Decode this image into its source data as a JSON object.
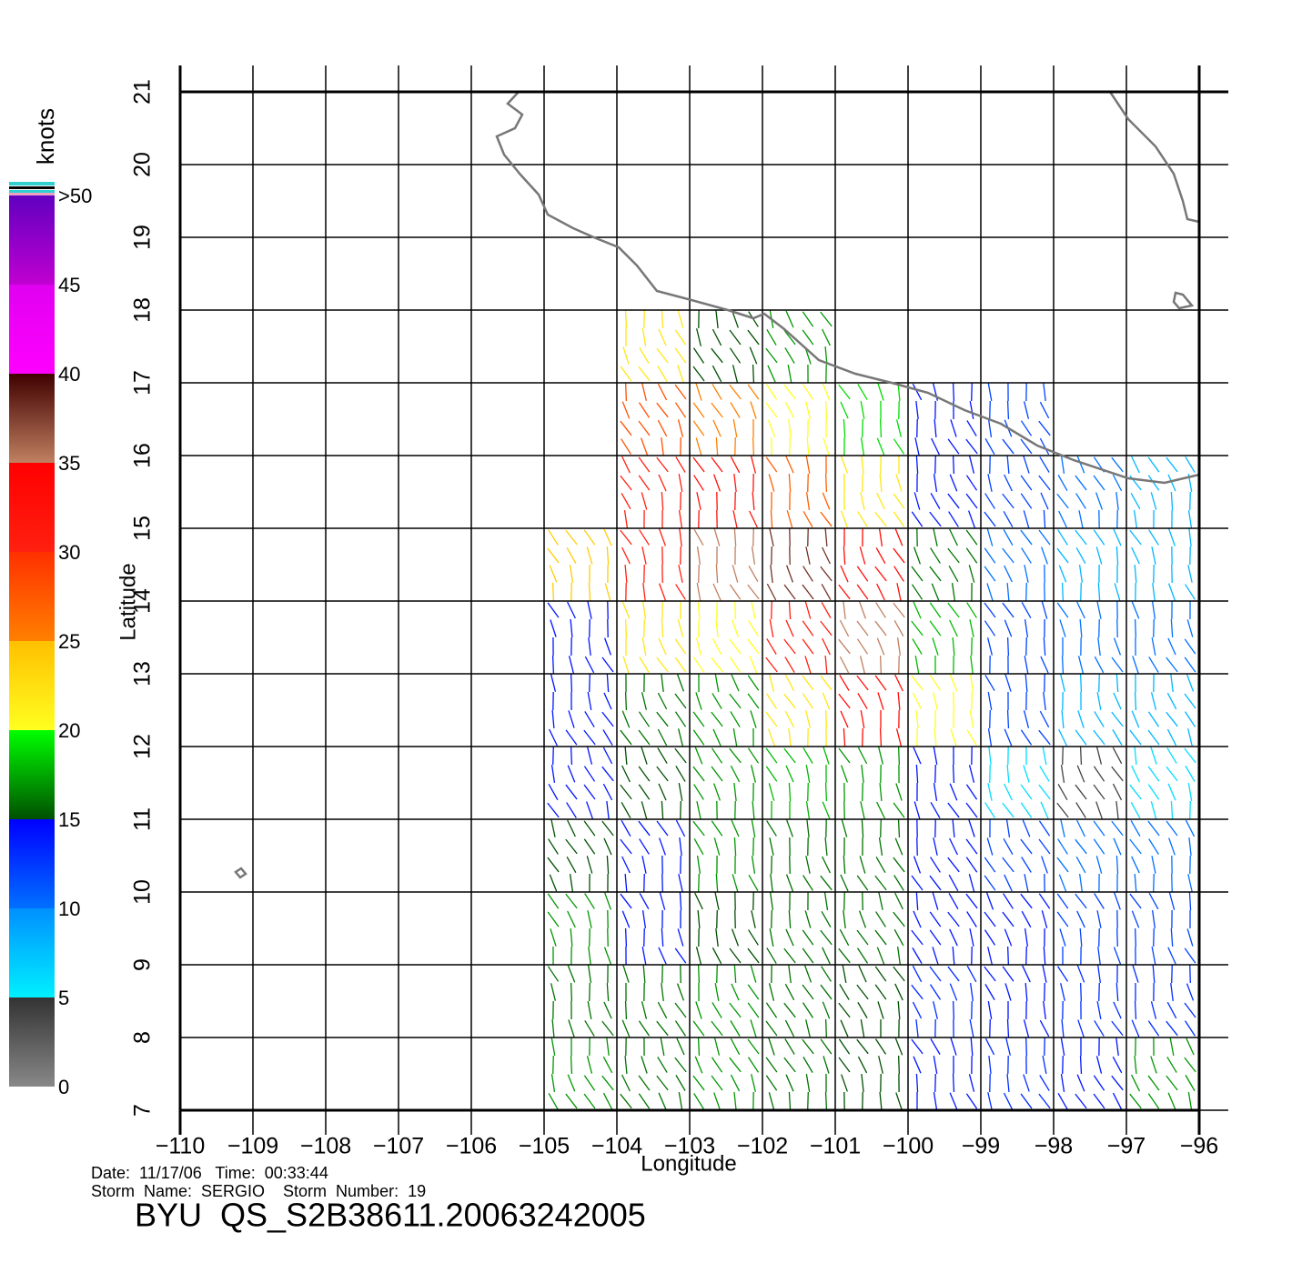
{
  "chart_data": {
    "type": "map",
    "x_label": "Longitude",
    "y_label": "Latitude",
    "xlim": [
      -110,
      -96
    ],
    "ylim": [
      7,
      21
    ],
    "xticks": [
      {
        "value": -110,
        "label": "−110"
      },
      {
        "value": -109,
        "label": "−109"
      },
      {
        "value": -108,
        "label": "−108"
      },
      {
        "value": -107,
        "label": "−107"
      },
      {
        "value": -106,
        "label": "−106"
      },
      {
        "value": -105,
        "label": "−105"
      },
      {
        "value": -104,
        "label": "−104"
      },
      {
        "value": -103,
        "label": "−103"
      },
      {
        "value": -102,
        "label": "−102"
      },
      {
        "value": -101,
        "label": "−101"
      },
      {
        "value": -100,
        "label": "−100"
      },
      {
        "value": -99,
        "label": "−99"
      },
      {
        "value": -98,
        "label": "−98"
      },
      {
        "value": -97,
        "label": "−97"
      },
      {
        "value": -96,
        "label": "−96"
      }
    ],
    "yticks": [
      7,
      8,
      9,
      10,
      11,
      12,
      13,
      14,
      15,
      16,
      17,
      18,
      19,
      20,
      21
    ],
    "grid": true,
    "wind": {
      "lon": [
        -104.5,
        -103.5,
        -102.5,
        -101.5,
        -100.5,
        -99.5,
        -98.5,
        -97.5,
        -96.5
      ],
      "lat": [
        17.5,
        16.5,
        15.5,
        14.5,
        13.5,
        12.5,
        11.5,
        10.5,
        9.5,
        8.5,
        7.5
      ],
      "speed": [
        [
          null,
          22,
          15,
          17,
          null,
          null,
          null,
          null,
          null
        ],
        [
          null,
          28,
          25,
          20,
          19,
          14,
          12,
          null,
          null
        ],
        [
          null,
          30,
          32,
          27,
          22,
          14,
          12,
          10,
          8
        ],
        [
          24,
          30,
          35,
          38,
          33,
          16,
          10,
          8,
          8
        ],
        [
          14,
          22,
          20,
          30,
          35,
          18,
          12,
          10,
          10
        ],
        [
          14,
          16,
          17,
          22,
          33,
          20,
          12,
          8,
          8
        ],
        [
          14,
          15,
          17,
          18,
          17,
          14,
          6,
          4,
          6
        ],
        [
          15,
          14,
          17,
          16,
          16,
          14,
          12,
          10,
          10
        ],
        [
          17,
          14,
          15,
          16,
          16,
          14,
          14,
          12,
          12
        ],
        [
          16,
          16,
          17,
          16,
          15,
          13,
          14,
          13,
          13
        ],
        [
          17,
          16,
          17,
          16,
          15,
          14,
          13,
          14,
          17
        ]
      ]
    },
    "colorbar": {
      "label": "knots",
      "lim": [
        0,
        50
      ],
      "ticks": [
        0,
        5,
        10,
        15,
        20,
        25,
        30,
        35,
        40,
        45,
        {
          "value": 50,
          "label": ">50"
        }
      ],
      "colors": [
        [
          "#888888",
          "#333333"
        ],
        [
          "#00f0ff",
          "#0090ff"
        ],
        [
          "#0070ff",
          "#0000ff"
        ],
        [
          "#005000",
          "#00ff00"
        ],
        [
          "#ffff20",
          "#ffc000"
        ],
        [
          "#ff8000",
          "#ff3000"
        ],
        [
          "#ff2010",
          "#ff0000"
        ],
        [
          "#c08060",
          "#400000"
        ],
        [
          "#ff00ff",
          "#e000f0"
        ],
        [
          "#c000d0",
          "#6000c0"
        ]
      ]
    },
    "footer": {
      "date_line": "Date:  11/17/06   Time:  00:33:44",
      "storm_line": "Storm  Name:  SERGIO    Storm  Number:  19",
      "id_line": "BYU  QS_S2B38611.20063242005"
    }
  }
}
